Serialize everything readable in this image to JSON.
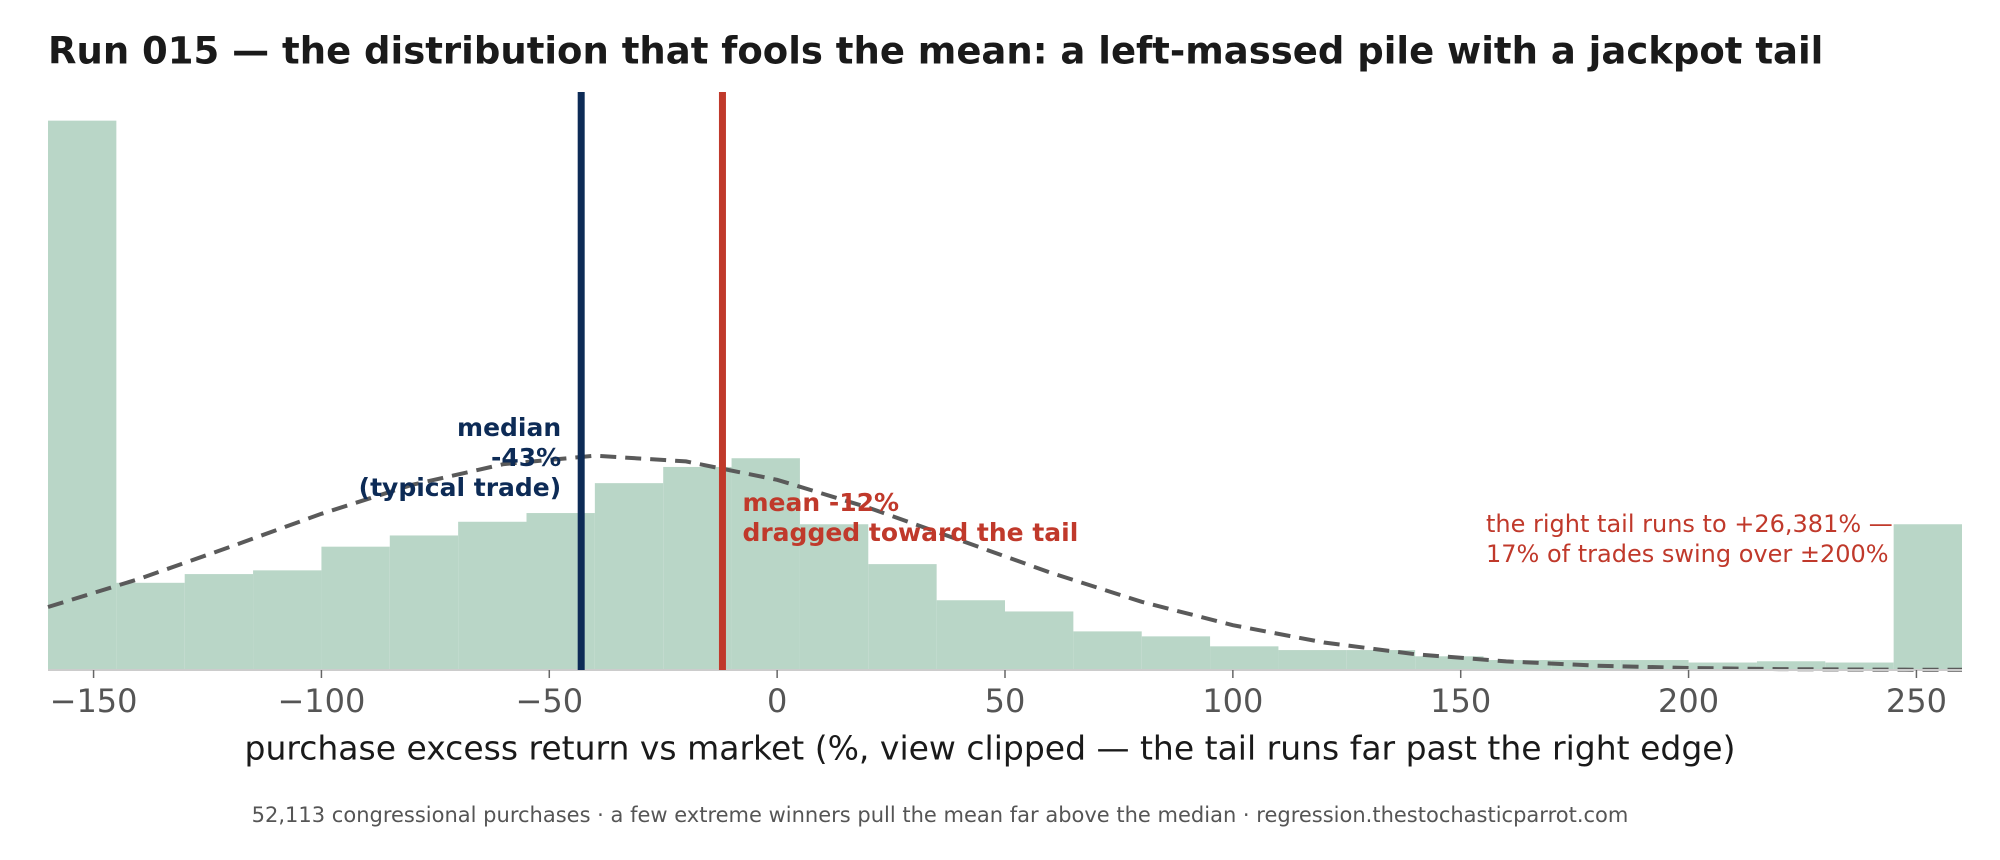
{
  "chart_data": {
    "type": "histogram",
    "title": "Run 015 — the distribution that fools the mean: a left-massed pile with a jackpot tail",
    "xlabel": "purchase excess return vs market  (%, view clipped — the tail runs far past the right edge)",
    "footnote": "52,113 congressional purchases · a few extreme winners pull the mean far above the median · regression.thestochasticparrot.com",
    "bins": [
      -160,
      -145,
      -130,
      -115,
      -100,
      -85,
      -70,
      -55,
      -40,
      -25,
      -10,
      5,
      20,
      35,
      50,
      65,
      80,
      95,
      110,
      125,
      140,
      155,
      170,
      185,
      200,
      215,
      230,
      245,
      260
    ],
    "values": [
      10584,
      1680,
      1848,
      1920,
      2376,
      2592,
      2856,
      3024,
      3600,
      3912,
      4080,
      2808,
      2040,
      1344,
      1128,
      744,
      648,
      456,
      384,
      384,
      264,
      192,
      192,
      192,
      144,
      168,
      144,
      2808
    ],
    "color": "#b9d6c7",
    "curve": {
      "color": "#5a5a5a",
      "x": [
        -160,
        -140,
        -120,
        -100,
        -80,
        -60,
        -40,
        -20,
        0,
        20,
        40,
        60,
        80,
        100,
        120,
        140,
        160,
        180,
        200,
        220,
        240,
        260
      ],
      "values": [
        1214,
        1755,
        2374,
        3009,
        3571,
        3966,
        4128,
        4019,
        3664,
        3129,
        2504,
        1875,
        1314,
        863,
        530,
        305,
        165,
        83,
        39,
        17,
        7,
        3
      ]
    },
    "median": -43,
    "median_color": "#0d2b56",
    "median_label": [
      "median",
      "-43%",
      "(typical trade)"
    ],
    "mean": -12,
    "mean_color": "#c0392b",
    "mean_label": [
      "mean -12%",
      "dragged toward the tail"
    ],
    "tail_note": [
      "the right tail runs to +26,381% —",
      "17% of trades swing over ±200%"
    ],
    "xlim": [
      -160,
      260
    ],
    "ylim": [
      0,
      11136
    ],
    "xticks": [
      {
        "value": -150,
        "label": "−150"
      },
      {
        "value": -100,
        "label": "−100"
      },
      {
        "value": -50,
        "label": "−50"
      },
      0,
      50,
      100,
      150,
      200,
      250
    ]
  }
}
